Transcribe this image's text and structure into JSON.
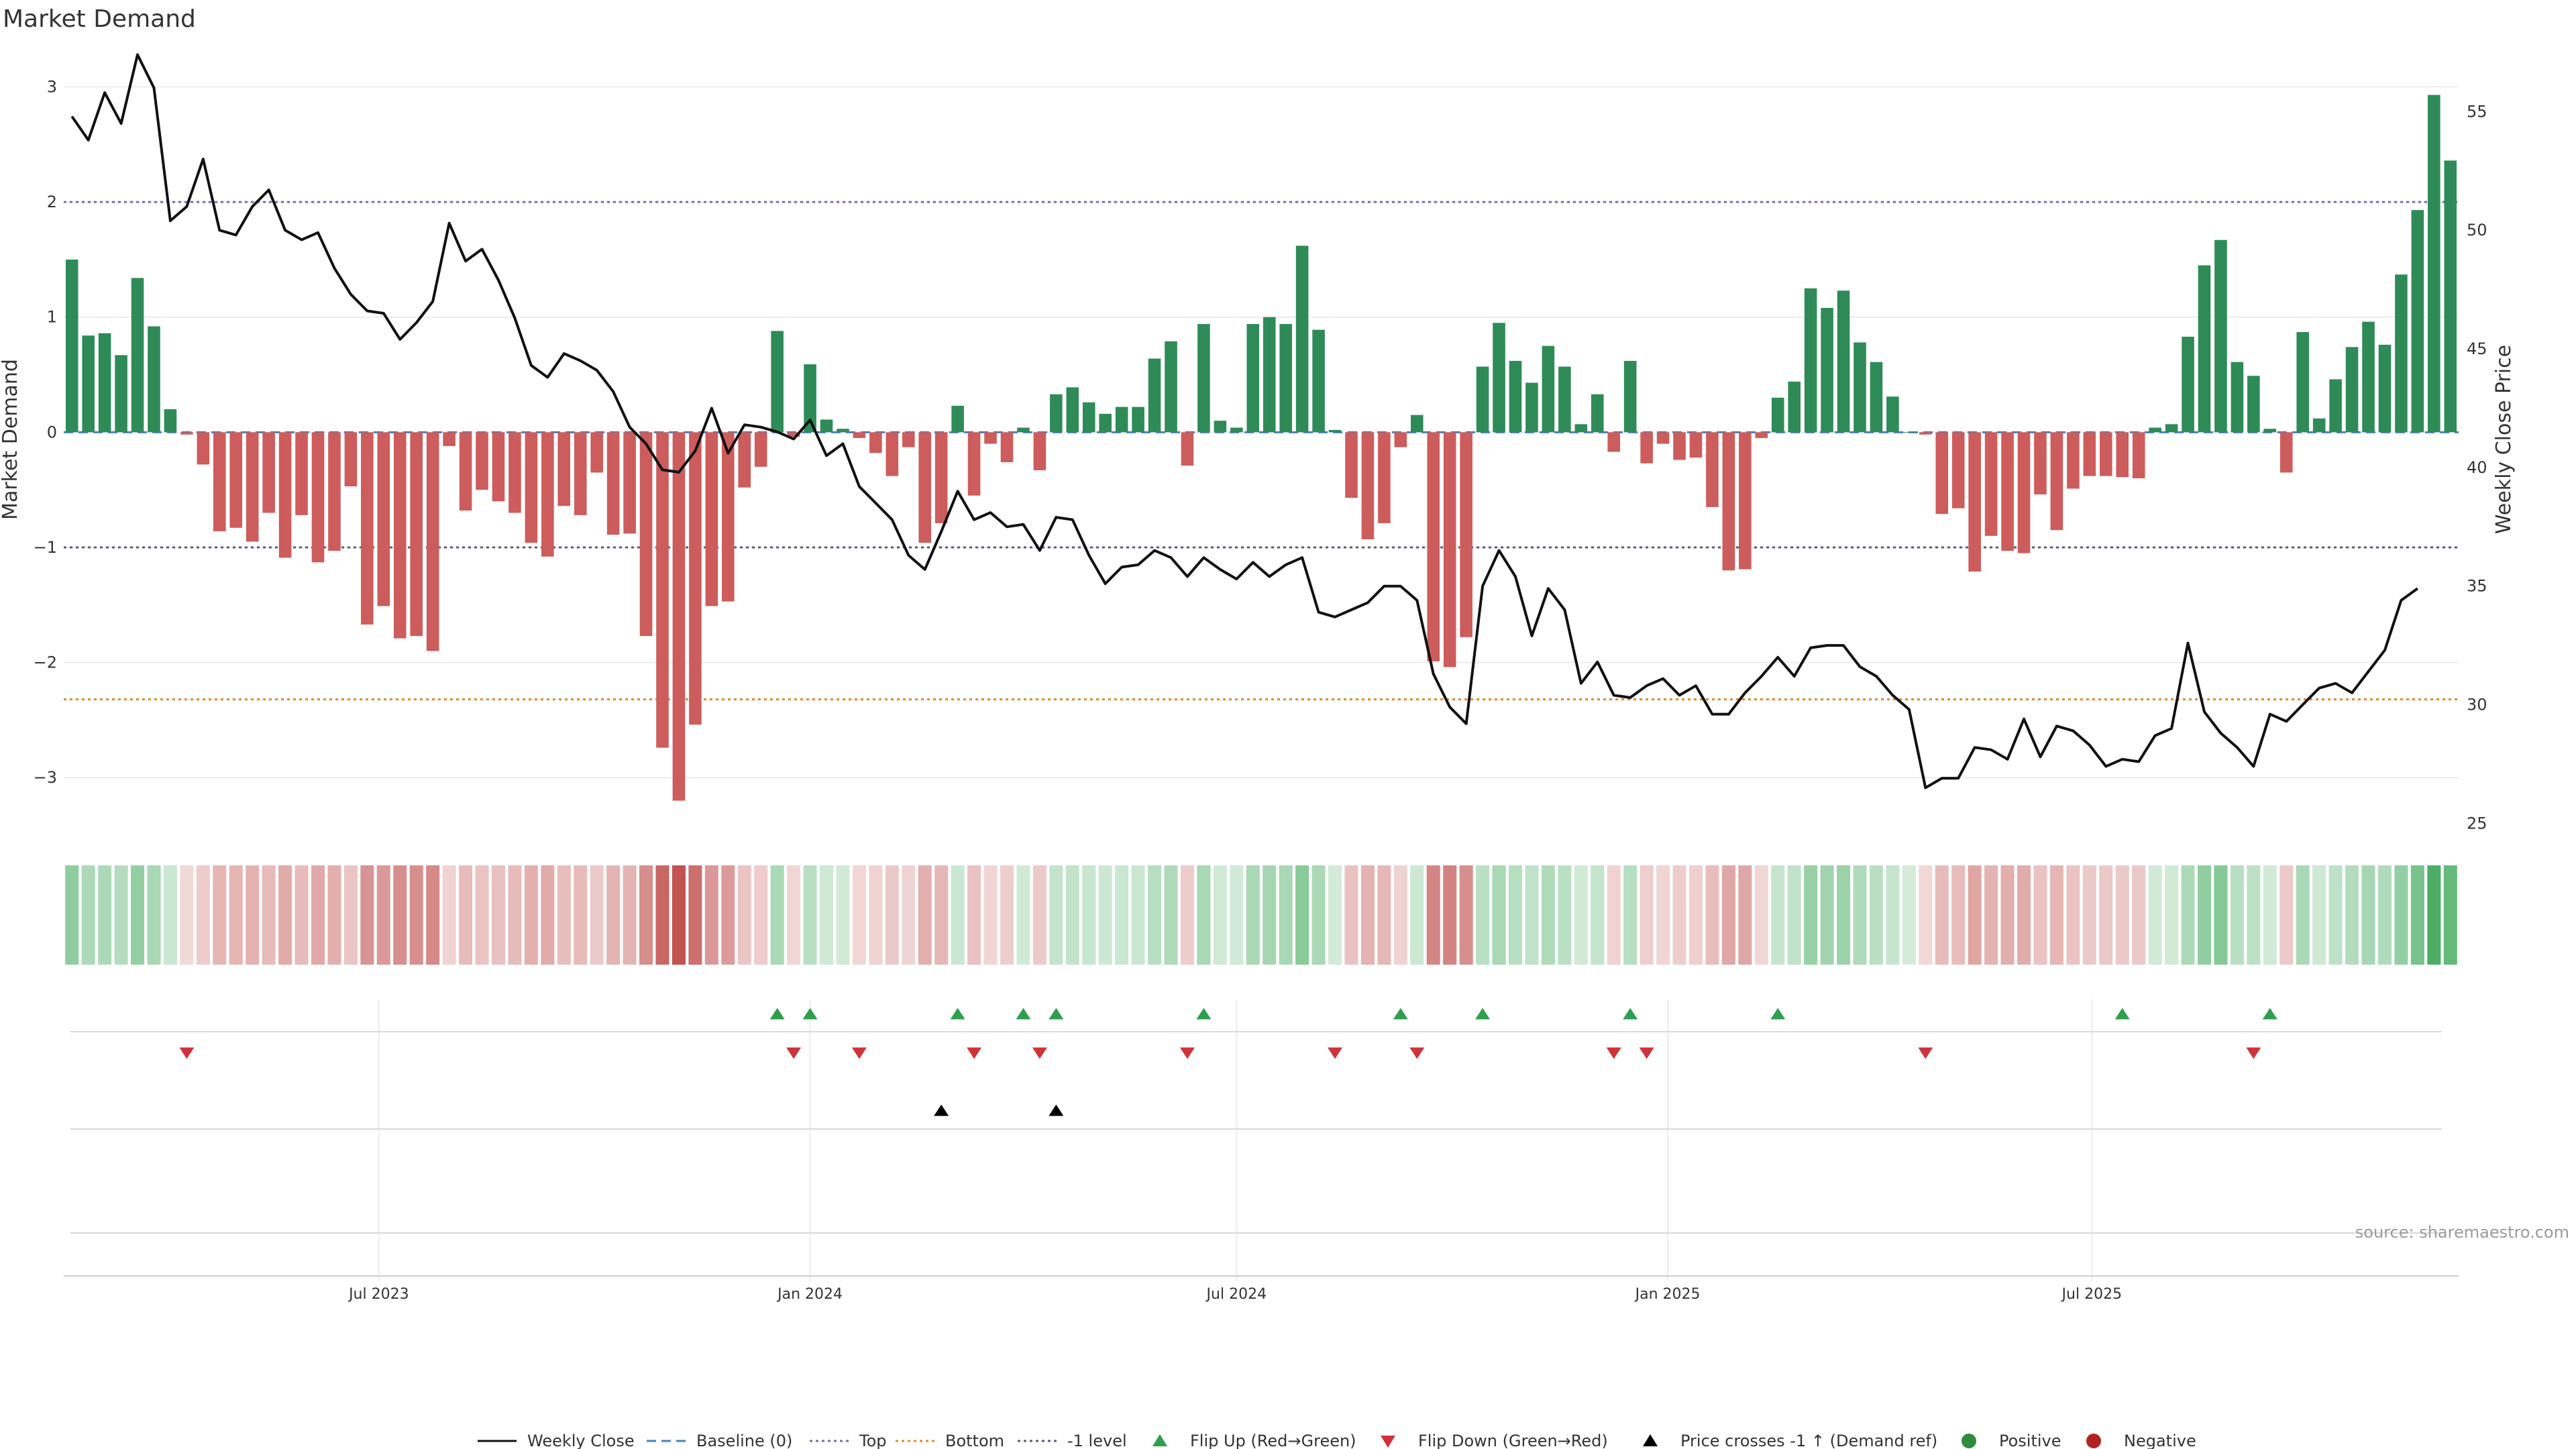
{
  "chart_data": {
    "type": "bar",
    "title": "Market Demand",
    "ylabel": "Market Demand",
    "y2label": "Weekly Close Price",
    "ylim": [
      -3.5,
      3.3
    ],
    "y2lim": [
      24.5,
      57.5
    ],
    "yticks": [
      3,
      2,
      1,
      0,
      -1,
      -2,
      -3
    ],
    "ytick_labels": [
      "3",
      "2",
      "1",
      "0",
      "−1",
      "−2",
      "−3"
    ],
    "y2ticks": [
      55,
      50,
      45,
      40,
      35,
      30,
      25
    ],
    "x_start": "2023-02-20",
    "x_labels": [
      {
        "label": "Jul 2023",
        "date": "2023-07-01"
      },
      {
        "label": "Jan 2024",
        "date": "2024-01-01"
      },
      {
        "label": "Jul 2024",
        "date": "2024-07-01"
      },
      {
        "label": "Jan 2025",
        "date": "2025-01-01"
      },
      {
        "label": "Jul 2025",
        "date": "2025-07-01"
      }
    ],
    "reference_lines": [
      {
        "name": "Baseline (0)",
        "value": 0,
        "color": "#4a7fc0",
        "style": "dashed"
      },
      {
        "name": "Top",
        "value": 2,
        "color": "#7b68b5",
        "style": "dotted"
      },
      {
        "name": "Bottom",
        "value": -2.32,
        "color": "#e08a2c",
        "style": "dotted"
      },
      {
        "name": "-1 level",
        "value": -1,
        "color": "#5a5a78",
        "style": "dotted"
      }
    ],
    "demand": [
      1.5,
      0.84,
      0.86,
      0.67,
      1.34,
      0.92,
      0.2,
      -0.02,
      -0.28,
      -0.86,
      -0.83,
      -0.95,
      -0.7,
      -1.09,
      -0.72,
      -1.13,
      -1.03,
      -0.47,
      -1.67,
      -1.51,
      -1.79,
      -1.77,
      -1.9,
      -0.12,
      -0.68,
      -0.5,
      -0.6,
      -0.7,
      -0.96,
      -1.08,
      -0.64,
      -0.72,
      -0.35,
      -0.89,
      -0.88,
      -1.77,
      -2.74,
      -3.2,
      -2.54,
      -1.51,
      -1.47,
      -0.48,
      -0.3,
      0.88,
      -0.04,
      0.59,
      0.11,
      0.03,
      -0.05,
      -0.18,
      -0.38,
      -0.13,
      -0.96,
      -0.79,
      0.23,
      -0.55,
      -0.1,
      -0.26,
      0.04,
      -0.33,
      0.33,
      0.39,
      0.26,
      0.16,
      0.22,
      0.22,
      0.64,
      0.79,
      -0.29,
      0.94,
      0.1,
      0.04,
      0.94,
      1.0,
      0.94,
      1.62,
      0.89,
      0.02,
      -0.57,
      -0.93,
      -0.79,
      -0.13,
      0.15,
      -1.99,
      -2.04,
      -1.78,
      0.57,
      0.95,
      0.62,
      0.43,
      0.75,
      0.57,
      0.07,
      0.33,
      -0.17,
      0.62,
      -0.27,
      -0.1,
      -0.24,
      -0.22,
      -0.65,
      -1.2,
      -1.19,
      -0.05,
      0.3,
      0.44,
      1.25,
      1.08,
      1.23,
      0.78,
      0.61,
      0.31,
      0.0,
      -0.02,
      -0.71,
      -0.66,
      -1.21,
      -0.9,
      -1.03,
      -1.05,
      -0.54,
      -0.85,
      -0.49,
      -0.38,
      -0.38,
      -0.39,
      -0.4,
      0.04,
      0.07,
      0.83,
      1.45,
      1.67,
      0.61,
      0.49,
      0.03,
      -0.35,
      0.87,
      0.12,
      0.46,
      0.74,
      0.96,
      0.76,
      1.37,
      1.93,
      2.93,
      2.36
    ],
    "close": [
      54.8,
      53.8,
      55.8,
      54.5,
      57.4,
      56.0,
      50.4,
      51.0,
      53.0,
      50.0,
      49.8,
      51.0,
      51.7,
      50.0,
      49.6,
      49.9,
      48.4,
      47.3,
      46.6,
      46.5,
      45.4,
      46.1,
      47.0,
      50.3,
      48.7,
      49.2,
      47.9,
      46.3,
      44.3,
      43.8,
      44.8,
      44.5,
      44.1,
      43.2,
      41.7,
      41.0,
      39.9,
      39.8,
      40.7,
      42.5,
      40.6,
      41.8,
      41.7,
      41.5,
      41.2,
      42.0,
      40.5,
      41.0,
      39.2,
      38.5,
      37.8,
      36.3,
      35.7,
      37.3,
      39.0,
      37.8,
      38.1,
      37.5,
      37.6,
      36.5,
      37.9,
      37.8,
      36.3,
      35.1,
      35.8,
      35.9,
      36.5,
      36.2,
      35.4,
      36.2,
      35.7,
      35.3,
      36.0,
      35.4,
      35.9,
      36.2,
      33.9,
      33.7,
      34.0,
      34.3,
      35.0,
      35.0,
      34.4,
      31.3,
      29.9,
      29.2,
      35.0,
      36.5,
      35.4,
      32.9,
      34.9,
      34.0,
      30.9,
      31.8,
      30.4,
      30.3,
      30.8,
      31.1,
      30.4,
      30.8,
      29.6,
      29.6,
      30.5,
      31.2,
      32.0,
      31.2,
      32.4,
      32.5,
      32.5,
      31.6,
      31.2,
      30.4,
      29.8,
      26.5,
      26.9,
      26.9,
      28.2,
      28.1,
      27.7,
      29.4,
      27.8,
      29.1,
      28.9,
      28.3,
      27.4,
      27.7,
      27.6,
      28.7,
      29.0,
      32.6,
      29.7,
      28.8,
      28.2,
      27.4,
      29.6,
      29.3,
      30.0,
      30.7,
      30.9,
      30.5,
      31.4,
      32.3,
      34.4,
      34.9
    ],
    "flip_up_weeks": [
      43,
      45,
      54,
      58,
      60,
      69,
      81,
      86,
      95,
      104,
      125,
      134
    ],
    "flip_down_weeks": [
      7,
      44,
      48,
      55,
      59,
      68,
      77,
      82,
      94,
      96,
      113,
      133
    ],
    "price_cross_weeks": [
      53,
      60
    ]
  },
  "source_text": "source: sharemaestro.com",
  "legend": [
    {
      "label": "Weekly Close",
      "kind": "line-solid",
      "color": "#111111"
    },
    {
      "label": "Baseline (0)",
      "kind": "line-dashed",
      "color": "#4a7fc0"
    },
    {
      "label": "Top",
      "kind": "line-dotted",
      "color": "#7b68b5"
    },
    {
      "label": "Bottom",
      "kind": "line-dotted",
      "color": "#e08a2c"
    },
    {
      "label": "-1 level",
      "kind": "line-dotted",
      "color": "#5a5a78"
    },
    {
      "label": "Flip Up (Red→Green)",
      "kind": "triangle-up",
      "color": "#2e9e4f"
    },
    {
      "label": "Flip Down (Green→Red)",
      "kind": "triangle-down",
      "color": "#d0323a"
    },
    {
      "label": "Price crosses -1 ↑ (Demand ref)",
      "kind": "triangle-up",
      "color": "#000000"
    },
    {
      "label": "Positive",
      "kind": "circle",
      "color": "#2e8b3e"
    },
    {
      "label": "Negative",
      "kind": "circle",
      "color": "#b22222"
    }
  ],
  "colors": {
    "positive_bar": "#2e8b57",
    "negative_bar": "#cd5c5c",
    "heat_positive": "#3aa655",
    "heat_negative": "#c0504d",
    "close_line": "#111111"
  }
}
